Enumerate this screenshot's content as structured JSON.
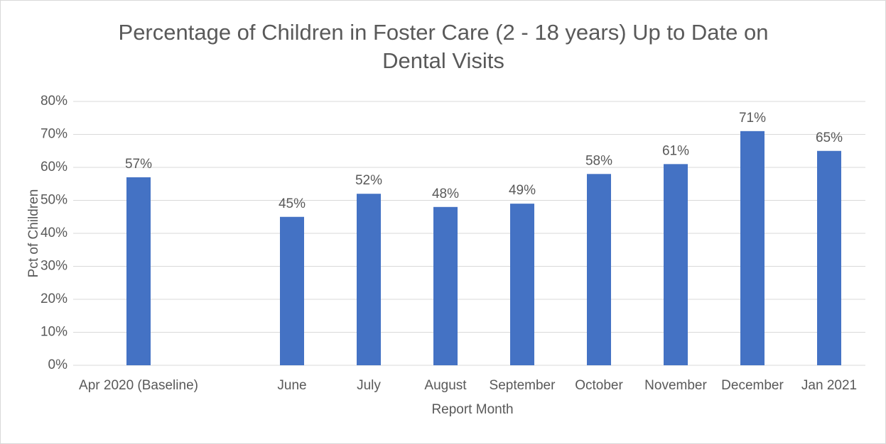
{
  "chart_data": {
    "type": "bar",
    "title": "Percentage of Children in Foster Care (2 - 18 years) Up to Date on Dental Visits",
    "x_label": "Report Month",
    "y_label": "Pct of Children",
    "categories": [
      "Apr 2020 (Baseline)",
      null,
      "June",
      "July",
      "August",
      "September",
      "October",
      "November",
      "December",
      "Jan 2021"
    ],
    "values": [
      57,
      null,
      45,
      52,
      48,
      49,
      58,
      61,
      71,
      65
    ],
    "value_labels": [
      "57%",
      null,
      "45%",
      "52%",
      "48%",
      "49%",
      "58%",
      "61%",
      "71%",
      "65%"
    ],
    "color": "#4472c4",
    "ylim": [
      0,
      80
    ],
    "yticks": [
      {
        "value": 0,
        "label": "0%"
      },
      {
        "value": 10,
        "label": "10%"
      },
      {
        "value": 20,
        "label": "20%"
      },
      {
        "value": 30,
        "label": "30%"
      },
      {
        "value": 40,
        "label": "40%"
      },
      {
        "value": 50,
        "label": "50%"
      },
      {
        "value": 60,
        "label": "60%"
      },
      {
        "value": 70,
        "label": "70%"
      },
      {
        "value": 80,
        "label": "80%"
      }
    ],
    "grid": true
  }
}
